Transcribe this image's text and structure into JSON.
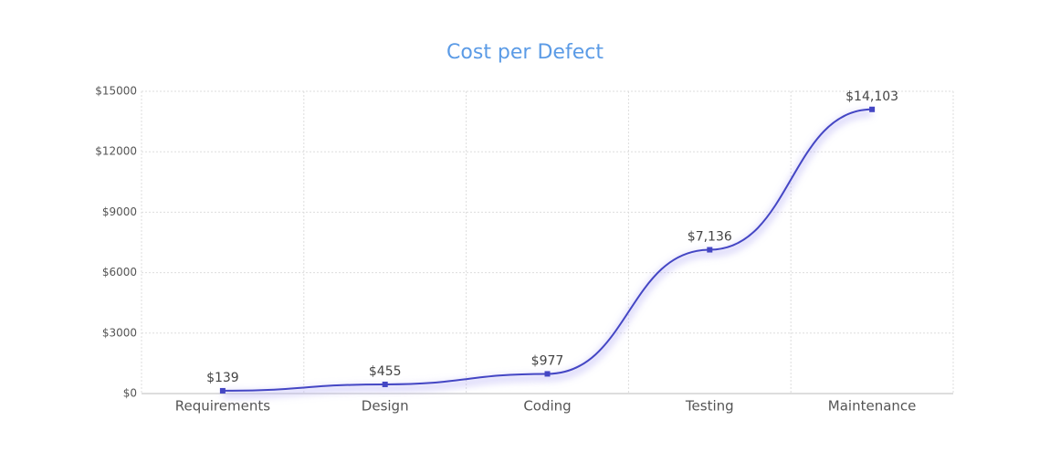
{
  "chart_data": {
    "type": "line",
    "title": "Cost per Defect",
    "categories": [
      "Requirements",
      "Design",
      "Coding",
      "Testing",
      "Maintenance"
    ],
    "values": [
      139,
      455,
      977,
      7136,
      14103
    ],
    "value_labels": [
      "$139",
      "$455",
      "$977",
      "$7,136",
      "$14,103"
    ],
    "color": "#4446c4",
    "ylim": [
      0,
      15000
    ],
    "yticks": [
      {
        "value": 0,
        "label": "$0"
      },
      {
        "value": 3000,
        "label": "$3000"
      },
      {
        "value": 6000,
        "label": "$6000"
      },
      {
        "value": 9000,
        "label": "$9000"
      },
      {
        "value": 12000,
        "label": "$12000"
      },
      {
        "value": 15000,
        "label": "$15000"
      }
    ],
    "grid": true
  }
}
